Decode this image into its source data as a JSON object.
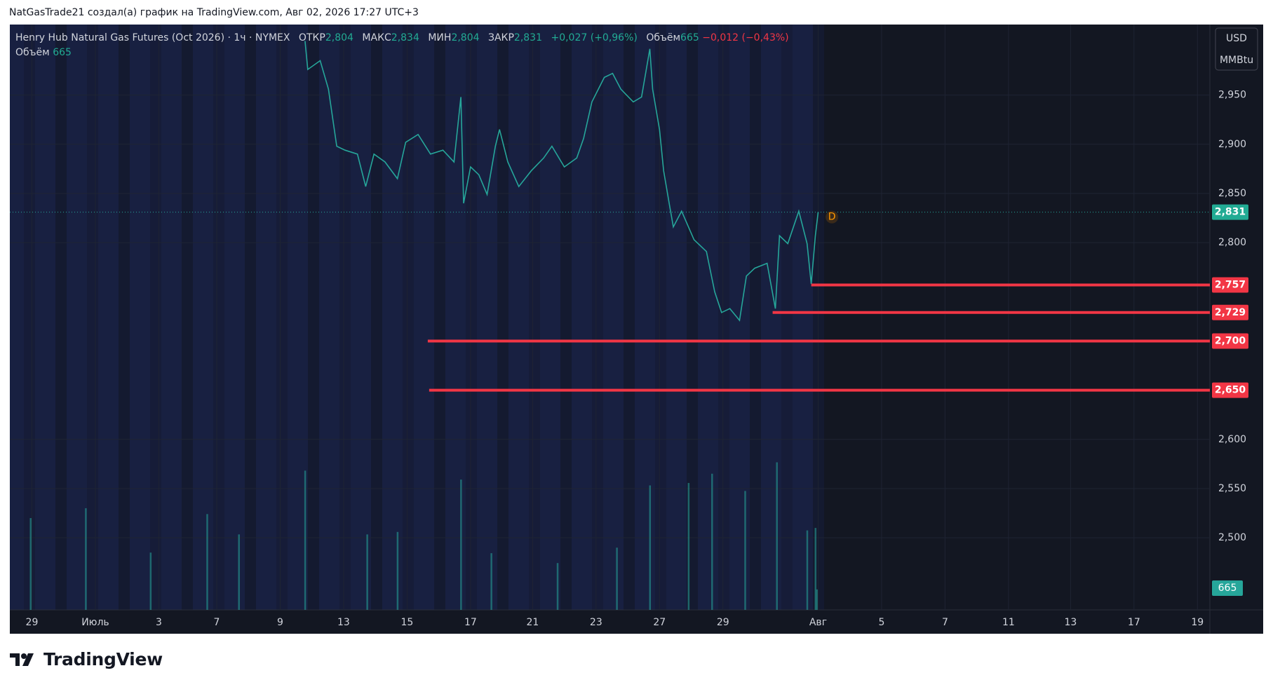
{
  "header": {
    "credit": "NatGasTrade21 создал(а) график на TradingView.com, Авг 02, 2026 17:27 UTC+3"
  },
  "branding": "TradingView",
  "chart_data": {
    "type": "line",
    "title": "Henry Hub Natural Gas Futures (Oct 2026) · 1ч · NYMEX",
    "stats": [
      {
        "name": "ОТКР",
        "value": "2,804"
      },
      {
        "name": "МАКС",
        "value": "2,834"
      },
      {
        "name": "МИН",
        "value": "2,804"
      },
      {
        "name": "ЗАКР",
        "value": "2,831"
      }
    ],
    "change": "+0,027 (+0,96%)",
    "volume_name": "Объём",
    "volume_value": "665",
    "volume_change": "−0,012 (−0,43%)",
    "currency": "USD",
    "unit": "MMBtu",
    "color": "#26a69a",
    "x": [
      214,
      216,
      225,
      231,
      237,
      243,
      252,
      258,
      264,
      272,
      281,
      287,
      296,
      305,
      314,
      322,
      327,
      329,
      334,
      340,
      346,
      352,
      355,
      361,
      369,
      378,
      387,
      393,
      402,
      411,
      416,
      422,
      431,
      437,
      443,
      452,
      458,
      464,
      466,
      471,
      474,
      478,
      481,
      487,
      496,
      505,
      511,
      516,
      522,
      529,
      534,
      540,
      549,
      555,
      558,
      564,
      572,
      578,
      581,
      584,
      586
    ],
    "values": [
      3.005,
      2.976,
      2.985,
      2.956,
      2.898,
      2.894,
      2.89,
      2.857,
      2.89,
      2.882,
      2.865,
      2.902,
      2.91,
      2.89,
      2.894,
      2.882,
      2.948,
      2.84,
      2.877,
      2.869,
      2.849,
      2.898,
      2.915,
      2.882,
      2.857,
      2.873,
      2.886,
      2.898,
      2.877,
      2.886,
      2.906,
      2.943,
      2.968,
      2.972,
      2.956,
      2.943,
      2.948,
      2.997,
      2.956,
      2.915,
      2.873,
      2.84,
      2.816,
      2.832,
      2.803,
      2.791,
      2.75,
      2.729,
      2.733,
      2.721,
      2.766,
      2.774,
      2.779,
      2.733,
      2.807,
      2.799,
      2.832,
      2.799,
      2.758,
      2.807,
      2.831
    ],
    "current_price": {
      "value": 2.831,
      "label": "2,831"
    },
    "marker": {
      "label": "D",
      "x": 596,
      "value": 2.826
    },
    "levels_color": "#f23645",
    "levels": [
      {
        "value": 2.757,
        "label": "2,757",
        "x": 581
      },
      {
        "value": 2.729,
        "label": "2,729",
        "x": 553
      },
      {
        "value": 2.7,
        "label": "2,700",
        "x": 303
      },
      {
        "value": 2.65,
        "label": "2,650",
        "x": 304
      }
    ],
    "volume": {
      "color": "#26a69a",
      "vlim": [
        0,
        19000
      ],
      "x": [
        15,
        55,
        102,
        143,
        166,
        214,
        259,
        281,
        327,
        349,
        397,
        440,
        464,
        492,
        509,
        533,
        556,
        578,
        584,
        585
      ],
      "values": [
        2980,
        3300,
        1860,
        3110,
        2450,
        4520,
        2450,
        2530,
        4230,
        1840,
        1520,
        2020,
        4040,
        4120,
        4420,
        3860,
        4790,
        2580,
        2660,
        665
      ]
    },
    "xlim": [
      0,
      870
    ],
    "ylim": [
      2.4267,
      3.0217
    ],
    "yticks": [
      {
        "value": 2.5,
        "label": "2,500"
      },
      {
        "value": 2.55,
        "label": "2,550"
      },
      {
        "value": 2.6,
        "label": "2,600"
      },
      {
        "value": 2.8,
        "label": "2,800"
      },
      {
        "value": 2.85,
        "label": "2,850"
      },
      {
        "value": 2.9,
        "label": "2,900"
      },
      {
        "value": 2.95,
        "label": "2,950"
      }
    ],
    "xticks": [
      {
        "value": 16,
        "label": "29"
      },
      {
        "value": 62,
        "label": "Июль"
      },
      {
        "value": 108,
        "label": "3"
      },
      {
        "value": 150,
        "label": "7"
      },
      {
        "value": 196,
        "label": "9"
      },
      {
        "value": 242,
        "label": "13"
      },
      {
        "value": 288,
        "label": "15"
      },
      {
        "value": 334,
        "label": "17"
      },
      {
        "value": 379,
        "label": "21"
      },
      {
        "value": 425,
        "label": "23"
      },
      {
        "value": 471,
        "label": "27"
      },
      {
        "value": 517,
        "label": "29"
      },
      {
        "value": 586,
        "label": "Авг"
      },
      {
        "value": 632,
        "label": "5"
      },
      {
        "value": 678,
        "label": "7"
      },
      {
        "value": 724,
        "label": "11"
      },
      {
        "value": 769,
        "label": "13"
      },
      {
        "value": 815,
        "label": "17"
      },
      {
        "value": 861,
        "label": "19"
      }
    ],
    "grid": true
  }
}
